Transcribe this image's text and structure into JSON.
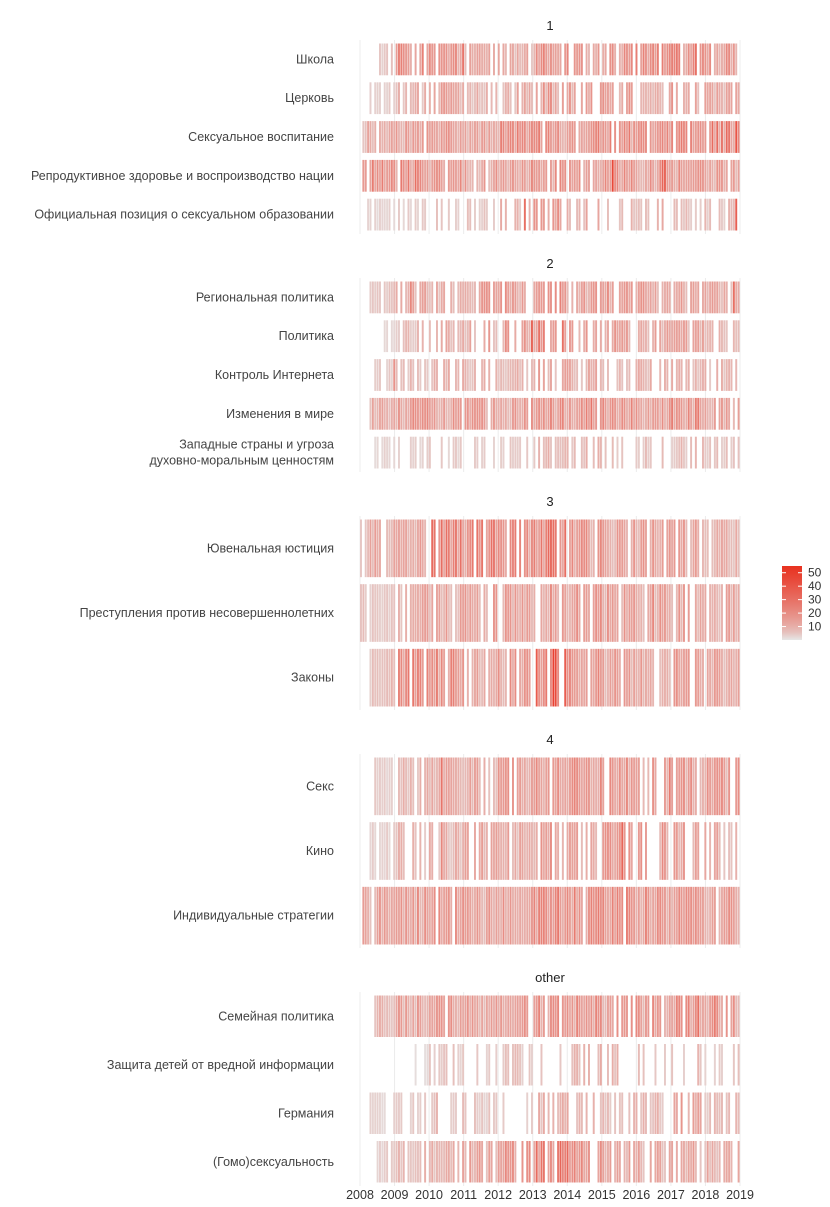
{
  "chart_data": {
    "type": "heatmap",
    "title": "",
    "xlabel": "",
    "ylabel": "",
    "x_ticks": [
      "2008",
      "2009",
      "2010",
      "2011",
      "2012",
      "2013",
      "2014",
      "2015",
      "2016",
      "2017",
      "2018",
      "2019"
    ],
    "xlim": [
      2008,
      2019
    ],
    "colorscale": {
      "low": "#e6e6e6",
      "high": "#e8311f",
      "ticks": [
        10,
        20,
        30,
        40,
        50
      ],
      "tick_labels": [
        "10",
        "20",
        "30",
        "40",
        "50"
      ],
      "range": [
        0,
        55
      ]
    },
    "legend_placement": "right",
    "panels": [
      {
        "title": "1",
        "rows": [
          {
            "label": "Школа",
            "start": 2008.4,
            "end": 2019.0,
            "yearly_intensity": [
              4,
              16,
              14,
              10,
              9,
              14,
              16,
              17,
              16,
              18,
              15
            ],
            "sparsity": 0.18,
            "peaks": [
              [
                2011.0,
                28
              ],
              [
                2013.3,
                24
              ],
              [
                2017.7,
                30
              ]
            ]
          },
          {
            "label": "Церковь",
            "start": 2008.2,
            "end": 2019.0,
            "yearly_intensity": [
              3,
              8,
              11,
              9,
              10,
              13,
              12,
              12,
              11,
              12,
              10
            ],
            "sparsity": 0.32,
            "peaks": [
              [
                2013.5,
                20
              ]
            ]
          },
          {
            "label": "Сексуальное воспитание",
            "start": 2008.1,
            "end": 2019.0,
            "yearly_intensity": [
              9,
              12,
              13,
              11,
              16,
              18,
              17,
              17,
              15,
              18,
              22
            ],
            "sparsity": 0.08,
            "peaks": [
              [
                2012.6,
                26
              ],
              [
                2018.6,
                32
              ],
              [
                2018.9,
                40
              ]
            ]
          },
          {
            "label": "Репродуктивное здоровье и воспроизводство нации",
            "start": 2008.1,
            "end": 2019.0,
            "yearly_intensity": [
              17,
              18,
              15,
              13,
              14,
              16,
              13,
              18,
              16,
              15,
              12
            ],
            "sparsity": 0.06,
            "peaks": [
              [
                2009.6,
                30
              ],
              [
                2015.3,
                45
              ],
              [
                2016.8,
                34
              ]
            ]
          },
          {
            "label": "Официальная позиция о сексуальном образовании",
            "start": 2008.2,
            "end": 2019.0,
            "yearly_intensity": [
              2,
              3,
              4,
              5,
              8,
              14,
              9,
              7,
              8,
              6,
              6
            ],
            "sparsity": 0.48,
            "peaks": [
              [
                2012.8,
                30
              ],
              [
                2013.4,
                28
              ],
              [
                2018.9,
                36
              ]
            ]
          }
        ]
      },
      {
        "title": "2",
        "rows": [
          {
            "label": "Региональная политика",
            "start": 2008.3,
            "end": 2019.0,
            "yearly_intensity": [
              5,
              10,
              8,
              12,
              14,
              14,
              13,
              13,
              12,
              13,
              11
            ],
            "sparsity": 0.2,
            "peaks": [
              [
                2009.5,
                22
              ],
              [
                2013.8,
                24
              ],
              [
                2018.8,
                30
              ]
            ]
          },
          {
            "label": "Политика",
            "start": 2008.7,
            "end": 2019.0,
            "yearly_intensity": [
              2,
              6,
              10,
              11,
              14,
              22,
              13,
              12,
              11,
              10,
              9
            ],
            "sparsity": 0.3,
            "peaks": [
              [
                2013.0,
                34
              ],
              [
                2013.9,
                30
              ],
              [
                2012.1,
                22
              ]
            ]
          },
          {
            "label": "Контроль Интернета",
            "start": 2008.3,
            "end": 2019.0,
            "yearly_intensity": [
              3,
              6,
              8,
              7,
              8,
              11,
              10,
              10,
              8,
              8,
              7
            ],
            "sparsity": 0.35,
            "peaks": [
              [
                2009.0,
                18
              ]
            ]
          },
          {
            "label": "Изменения в мире",
            "start": 2008.3,
            "end": 2019.0,
            "yearly_intensity": [
              10,
              14,
              14,
              13,
              14,
              15,
              16,
              15,
              14,
              17,
              14
            ],
            "sparsity": 0.05,
            "peaks": [
              [
                2014.7,
                28
              ],
              [
                2017.8,
                26
              ]
            ]
          },
          {
            "label": "Западные страны и угроза\nдуховно-моральным ценностям",
            "start": 2008.3,
            "end": 2019.0,
            "yearly_intensity": [
              2,
              3,
              3,
              3,
              4,
              8,
              7,
              6,
              6,
              6,
              5
            ],
            "sparsity": 0.45,
            "peaks": [
              [
                2012.9,
                18
              ],
              [
                2015.8,
                16
              ]
            ]
          }
        ]
      },
      {
        "title": "3",
        "rows": [
          {
            "label": "Ювенальная юстиция",
            "start": 2008.0,
            "end": 2019.0,
            "yearly_intensity": [
              10,
              12,
              22,
              20,
              16,
              22,
              15,
              12,
              12,
              11,
              9
            ],
            "sparsity": 0.1,
            "peaks": [
              [
                2010.5,
                30
              ],
              [
                2013.5,
                32
              ],
              [
                2012.5,
                26
              ]
            ]
          },
          {
            "label": "Преступления против несовершеннолетних",
            "start": 2008.0,
            "end": 2019.0,
            "yearly_intensity": [
              5,
              10,
              11,
              12,
              12,
              14,
              14,
              13,
              13,
              12,
              11
            ],
            "sparsity": 0.15,
            "peaks": [
              [
                2016.5,
                22
              ]
            ]
          },
          {
            "label": "Законы",
            "start": 2008.3,
            "end": 2019.0,
            "yearly_intensity": [
              6,
              18,
              20,
              11,
              14,
              26,
              15,
              12,
              12,
              13,
              11
            ],
            "sparsity": 0.15,
            "peaks": [
              [
                2009.9,
                36
              ],
              [
                2013.6,
                48
              ],
              [
                2013.7,
                44
              ],
              [
                2012.6,
                30
              ]
            ]
          }
        ]
      },
      {
        "title": "4",
        "rows": [
          {
            "label": "Секс",
            "start": 2008.4,
            "end": 2019.0,
            "yearly_intensity": [
              3,
              8,
              10,
              12,
              13,
              14,
              15,
              14,
              15,
              14,
              13
            ],
            "sparsity": 0.18,
            "peaks": [
              [
                2010.4,
                28
              ],
              [
                2017.0,
                26
              ]
            ]
          },
          {
            "label": "Кино",
            "start": 2008.2,
            "end": 2019.0,
            "yearly_intensity": [
              3,
              7,
              8,
              10,
              10,
              13,
              12,
              13,
              15,
              12,
              10
            ],
            "sparsity": 0.3,
            "peaks": [
              [
                2015.6,
                34
              ],
              [
                2010.4,
                22
              ]
            ]
          },
          {
            "label": "Индивидуальные стратегии",
            "start": 2008.1,
            "end": 2019.0,
            "yearly_intensity": [
              12,
              14,
              14,
              12,
              13,
              18,
              17,
              16,
              15,
              14,
              13
            ],
            "sparsity": 0.06,
            "peaks": [
              [
                2013.2,
                24
              ]
            ]
          }
        ]
      },
      {
        "title": "other",
        "rows": [
          {
            "label": "Семейная политика",
            "start": 2008.4,
            "end": 2019.0,
            "yearly_intensity": [
              7,
              12,
              13,
              12,
              13,
              15,
              15,
              14,
              14,
              16,
              15
            ],
            "sparsity": 0.12,
            "peaks": [
              [
                2017.8,
                30
              ],
              [
                2018.3,
                26
              ]
            ]
          },
          {
            "label": "Защита детей от вредной информации",
            "start": 2009.6,
            "end": 2019.0,
            "yearly_intensity": [
              0,
              1,
              4,
              5,
              5,
              7,
              8,
              7,
              6,
              6,
              5
            ],
            "sparsity": 0.55,
            "peaks": [
              [
                2014.4,
                34
              ],
              [
                2013.6,
                20
              ]
            ]
          },
          {
            "label": "Германия",
            "start": 2008.2,
            "end": 2019.0,
            "yearly_intensity": [
              2,
              3,
              6,
              4,
              5,
              9,
              8,
              7,
              7,
              12,
              6
            ],
            "sparsity": 0.5,
            "peaks": [
              [
                2016.9,
                38
              ],
              [
                2017.0,
                34
              ],
              [
                2010.0,
                24
              ]
            ]
          },
          {
            "label": "(Гомо)сексуальность",
            "start": 2008.5,
            "end": 2019.0,
            "yearly_intensity": [
              3,
              7,
              9,
              11,
              15,
              22,
              16,
              11,
              10,
              11,
              9
            ],
            "sparsity": 0.2,
            "peaks": [
              [
                2013.8,
                34
              ],
              [
                2014.0,
                32
              ],
              [
                2013.3,
                28
              ]
            ]
          }
        ]
      }
    ]
  }
}
